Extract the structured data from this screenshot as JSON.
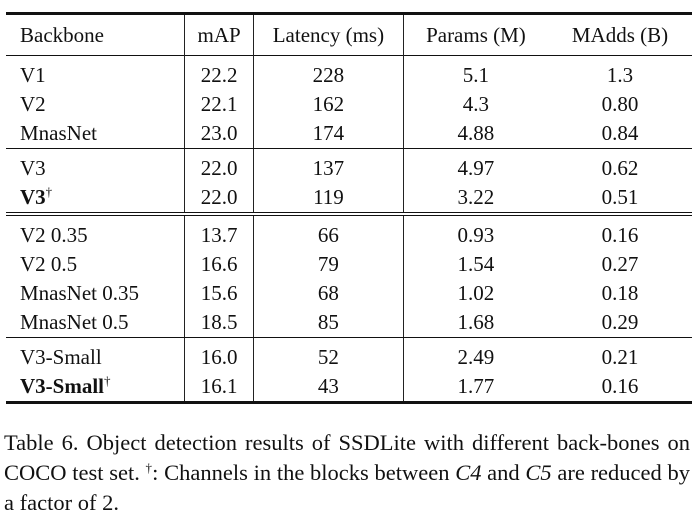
{
  "table": {
    "headers": [
      "Backbone",
      "mAP",
      "Latency (ms)",
      "Params (M)",
      "MAdds (B)"
    ],
    "groups": [
      {
        "rows": [
          {
            "backbone": "V1",
            "mark": "",
            "map": "22.2",
            "latency": "228",
            "params": "5.1",
            "madds": "1.3"
          },
          {
            "backbone": "V2",
            "mark": "",
            "map": "22.1",
            "latency": "162",
            "params": "4.3",
            "madds": "0.80"
          },
          {
            "backbone": "MnasNet",
            "mark": "",
            "map": "23.0",
            "latency": "174",
            "params": "4.88",
            "madds": "0.84"
          }
        ]
      },
      {
        "rows": [
          {
            "backbone": "V3",
            "mark": "",
            "map": "22.0",
            "latency": "137",
            "params": "4.97",
            "madds": "0.62"
          },
          {
            "backbone": "V3",
            "mark": "†",
            "map": "22.0",
            "latency": "119",
            "params": "3.22",
            "madds": "0.51"
          }
        ]
      },
      {
        "rows": [
          {
            "backbone": "V2 0.35",
            "mark": "",
            "map": "13.7",
            "latency": "66",
            "params": "0.93",
            "madds": "0.16"
          },
          {
            "backbone": "V2 0.5",
            "mark": "",
            "map": "16.6",
            "latency": "79",
            "params": "1.54",
            "madds": "0.27"
          },
          {
            "backbone": "MnasNet 0.35",
            "mark": "",
            "map": "15.6",
            "latency": "68",
            "params": "1.02",
            "madds": "0.18"
          },
          {
            "backbone": "MnasNet 0.5",
            "mark": "",
            "map": "18.5",
            "latency": "85",
            "params": "1.68",
            "madds": "0.29"
          }
        ]
      },
      {
        "rows": [
          {
            "backbone": "V3-Small",
            "mark": "",
            "map": "16.0",
            "latency": "52",
            "params": "2.49",
            "madds": "0.21"
          },
          {
            "backbone": "V3-Small",
            "mark": "†",
            "map": "16.1",
            "latency": "43",
            "params": "1.77",
            "madds": "0.16"
          }
        ]
      }
    ]
  },
  "caption": {
    "p1": "Table 6. Object detection results of SSDLite with different back-bones on COCO test set. ",
    "dagger": "†",
    "p2": ": Channels in the blocks between ",
    "c4": "C4",
    "p3": " and ",
    "c5": "C5",
    "p4": " are reduced by a factor of 2."
  }
}
